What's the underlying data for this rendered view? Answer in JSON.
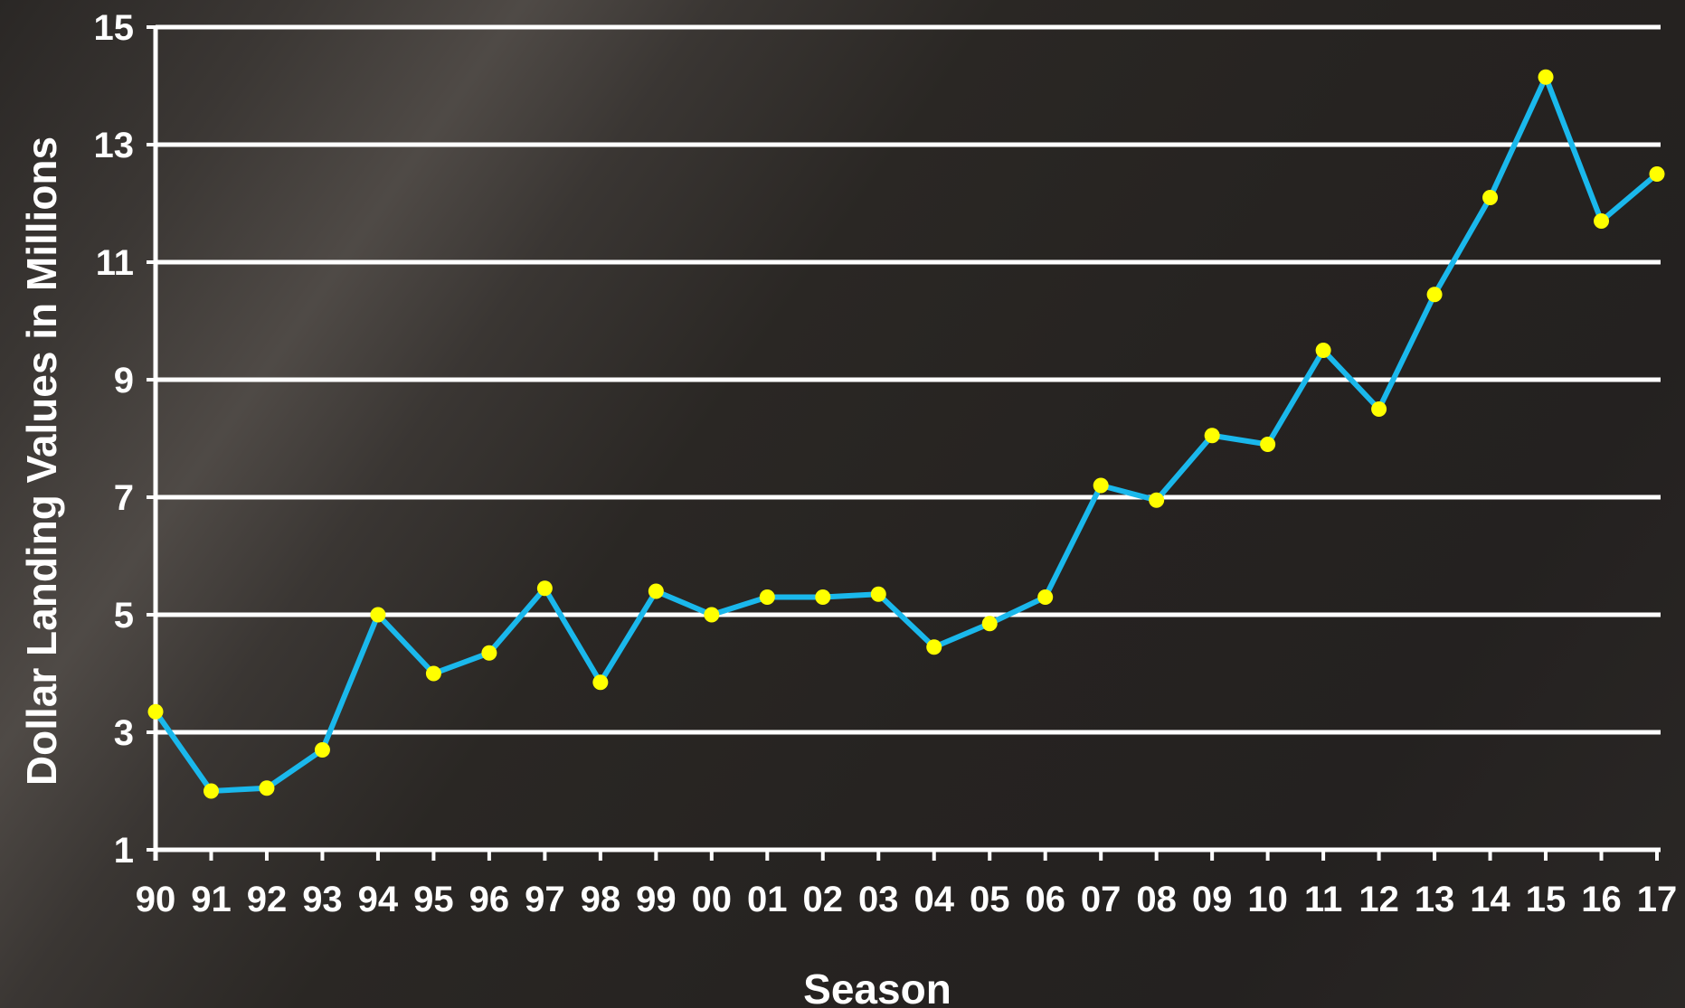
{
  "chart_data": {
    "type": "line",
    "xlabel": "Season",
    "ylabel": "Dollar Landing Values in Millions",
    "categories": [
      "90",
      "91",
      "92",
      "93",
      "94",
      "95",
      "96",
      "97",
      "98",
      "99",
      "00",
      "01",
      "02",
      "03",
      "04",
      "05",
      "06",
      "07",
      "08",
      "09",
      "10",
      "11",
      "12",
      "13",
      "14",
      "15",
      "16",
      "17"
    ],
    "series": [
      {
        "values": [
          3.35,
          2.0,
          2.05,
          2.7,
          5.0,
          4.0,
          4.35,
          5.45,
          3.85,
          5.4,
          5.0,
          5.3,
          5.3,
          5.35,
          4.45,
          4.85,
          5.3,
          7.2,
          6.95,
          8.05,
          7.9,
          9.5,
          8.5,
          10.45,
          12.1,
          14.15,
          11.7,
          12.5
        ]
      }
    ],
    "ylim": [
      1,
      15
    ],
    "yticks": [
      1,
      3,
      5,
      7,
      9,
      11,
      13,
      15
    ],
    "grid": true,
    "colors": {
      "line": "#1ab8ec",
      "marker": "#ffff00",
      "grid": "#ffffff",
      "text": "#ffffff"
    }
  }
}
